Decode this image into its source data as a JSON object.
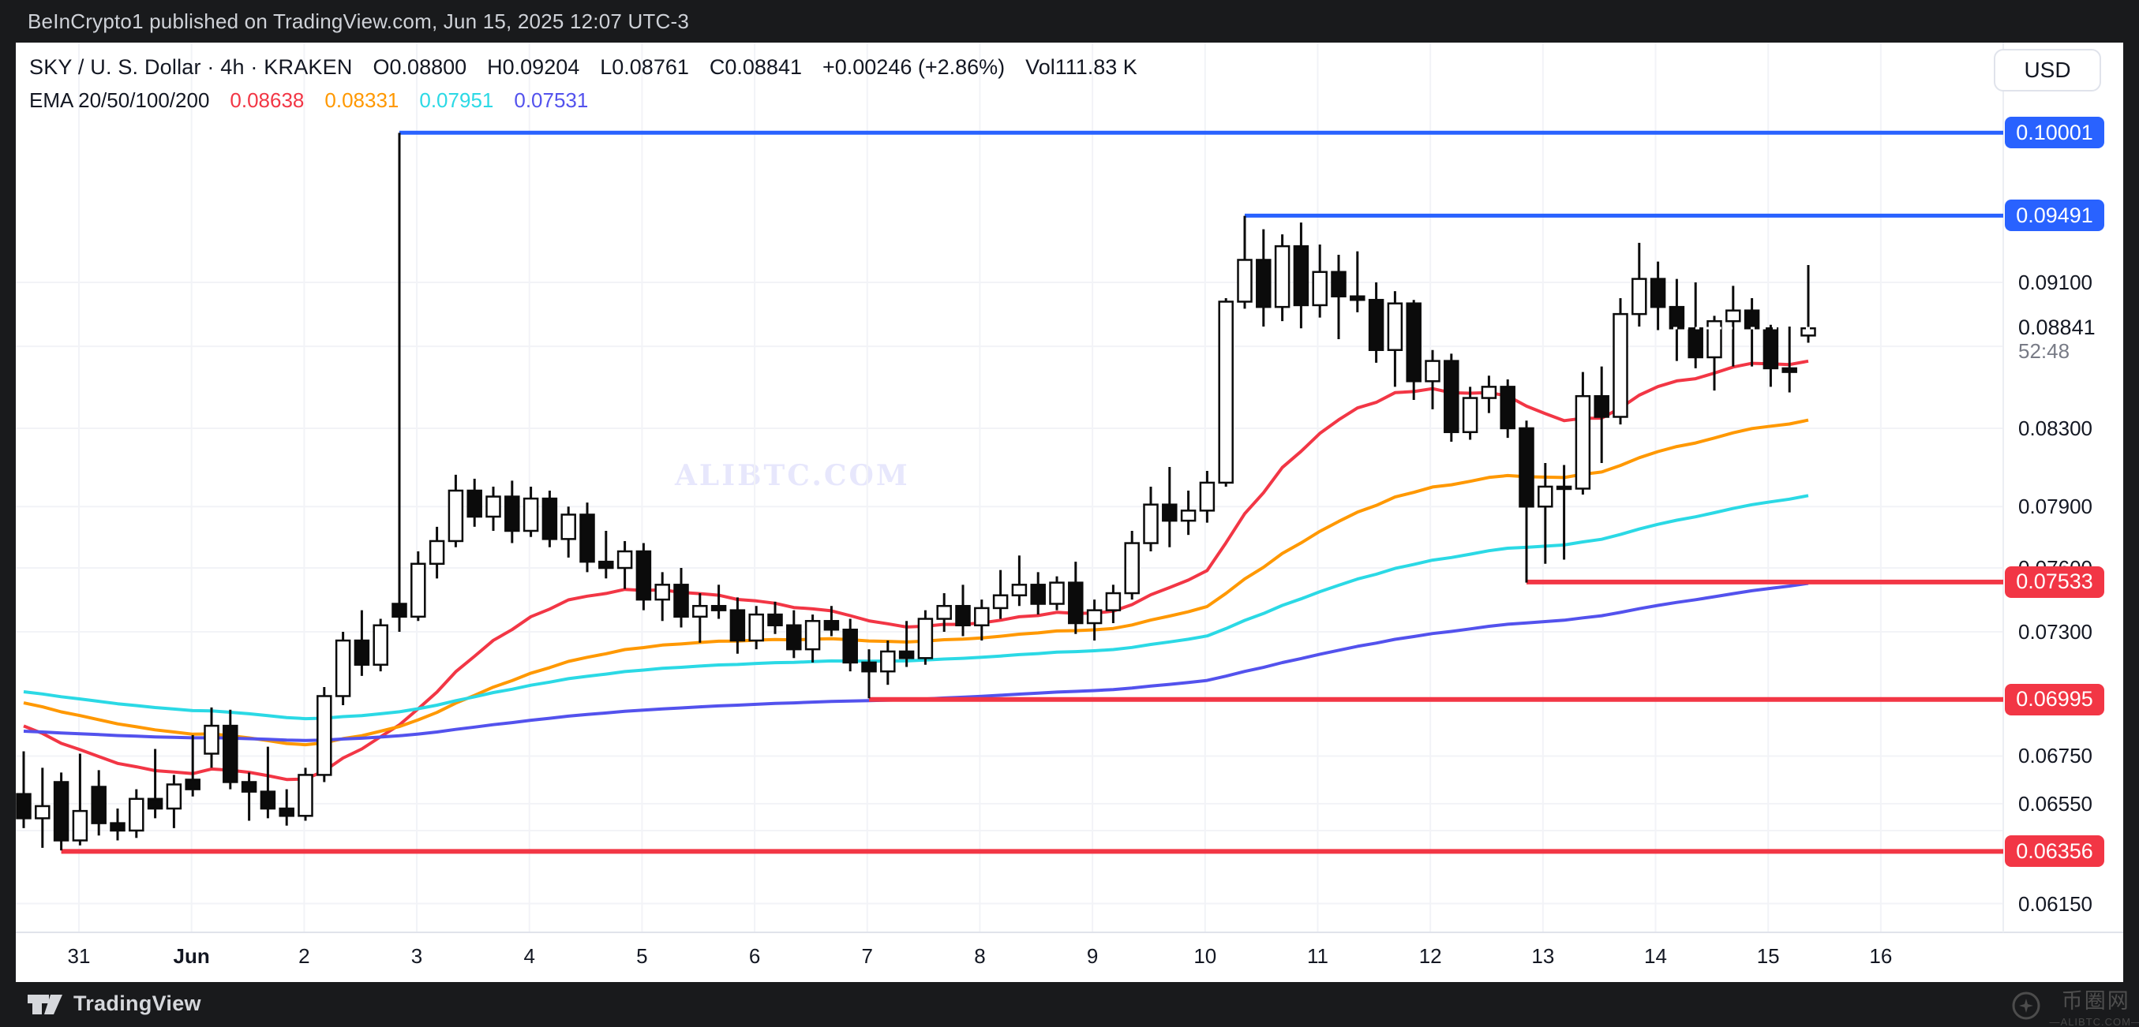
{
  "titlebar": {
    "attribution": "BeInCrypto1 published on TradingView.com, Jun 15, 2025 12:07 UTC-3"
  },
  "legend": {
    "symbol": "SKY / U. S. Dollar · 4h · KRAKEN",
    "o": "O0.08800",
    "h": "H0.09204",
    "l": "L0.08761",
    "c": "C0.08841",
    "change": "+0.00246 (+2.86%)",
    "volume": "Vol111.83 K"
  },
  "currency_button": {
    "label": "USD"
  },
  "watermark_center": "ALIBTC.COM",
  "bottombar": {
    "brand": "TradingView",
    "cn_name": "币圈网",
    "cn_site": "—ALIBTC.COM—"
  },
  "chart_data": {
    "type": "candlestick",
    "title": "SKY / U. S. Dollar · 4h · KRAKEN",
    "scale": "log",
    "grid": true,
    "current_price": {
      "value": 0.08841,
      "label": "0.08841",
      "countdown": "52:48"
    },
    "price_ticks": [
      {
        "label": "0.09100",
        "price": 0.091
      },
      {
        "label": "0.08300",
        "price": 0.083
      },
      {
        "label": "0.07900",
        "price": 0.079
      },
      {
        "label": "0.07600",
        "price": 0.076
      },
      {
        "label": "0.07300",
        "price": 0.073
      },
      {
        "label": "0.06750",
        "price": 0.0675
      },
      {
        "label": "0.06550",
        "price": 0.0655
      },
      {
        "label": "0.06150",
        "price": 0.0615
      }
    ],
    "minor_grid_prices": [
      0.0874,
      0.0644
    ],
    "time_ticks": [
      {
        "label": "31"
      },
      {
        "label": "Jun",
        "bold": true
      },
      {
        "label": "2"
      },
      {
        "label": "3"
      },
      {
        "label": "4"
      },
      {
        "label": "5"
      },
      {
        "label": "6"
      },
      {
        "label": "7"
      },
      {
        "label": "8"
      },
      {
        "label": "9"
      },
      {
        "label": "10"
      },
      {
        "label": "11"
      },
      {
        "label": "12"
      },
      {
        "label": "13"
      },
      {
        "label": "14"
      },
      {
        "label": "15"
      },
      {
        "label": "16"
      }
    ],
    "level_lines": [
      {
        "label": "0.10001",
        "price": 0.10001,
        "color": "#2962FF",
        "start_index": 20
      },
      {
        "label": "0.09491",
        "price": 0.09491,
        "color": "#2962FF",
        "start_index": 65
      },
      {
        "label": "0.07533",
        "price": 0.07533,
        "color": "#F23645",
        "start_index": 80
      },
      {
        "label": "0.06995",
        "price": 0.06995,
        "color": "#F23645",
        "start_index": 45
      },
      {
        "label": "0.06356",
        "price": 0.06356,
        "color": "#F23645",
        "start_index": 2
      }
    ],
    "emas": {
      "label": "EMA 20/50/100/200",
      "periods": [
        20,
        50,
        100,
        200
      ],
      "seeds": [
        0.0692,
        0.07,
        0.0704,
        0.0686
      ],
      "colors": [
        "#F23645",
        "#FF9800",
        "#2BD9E5",
        "#5352ED"
      ],
      "values": [
        "0.08638",
        "0.08331",
        "0.07951",
        "0.07531"
      ]
    },
    "candles": [
      [
        0.0659,
        0.0677,
        0.0645,
        0.0649
      ],
      [
        0.0649,
        0.067,
        0.0637,
        0.0654
      ],
      [
        0.0664,
        0.0668,
        0.0636,
        0.064
      ],
      [
        0.064,
        0.0676,
        0.0638,
        0.0652
      ],
      [
        0.0662,
        0.0669,
        0.0642,
        0.0647
      ],
      [
        0.0647,
        0.0653,
        0.064,
        0.0644
      ],
      [
        0.0644,
        0.0661,
        0.0641,
        0.0657
      ],
      [
        0.0657,
        0.0678,
        0.0649,
        0.0653
      ],
      [
        0.0653,
        0.0667,
        0.0645,
        0.0663
      ],
      [
        0.0665,
        0.0684,
        0.0658,
        0.0661
      ],
      [
        0.0676,
        0.0696,
        0.067,
        0.0688
      ],
      [
        0.0688,
        0.0695,
        0.0661,
        0.0664
      ],
      [
        0.0664,
        0.0668,
        0.0648,
        0.066
      ],
      [
        0.066,
        0.0679,
        0.0649,
        0.0653
      ],
      [
        0.0653,
        0.0661,
        0.0646,
        0.065
      ],
      [
        0.065,
        0.067,
        0.0648,
        0.0667
      ],
      [
        0.0667,
        0.0705,
        0.0664,
        0.0701
      ],
      [
        0.0701,
        0.073,
        0.0697,
        0.0726
      ],
      [
        0.0726,
        0.074,
        0.071,
        0.0715
      ],
      [
        0.0715,
        0.0736,
        0.0712,
        0.0733
      ],
      [
        0.0743,
        0.1,
        0.073,
        0.0737
      ],
      [
        0.0737,
        0.0768,
        0.0735,
        0.0762
      ],
      [
        0.0762,
        0.078,
        0.0755,
        0.0773
      ],
      [
        0.0773,
        0.0806,
        0.077,
        0.0798
      ],
      [
        0.0798,
        0.0804,
        0.078,
        0.0785
      ],
      [
        0.0785,
        0.08,
        0.0778,
        0.0795
      ],
      [
        0.0795,
        0.0803,
        0.0772,
        0.0778
      ],
      [
        0.0778,
        0.08,
        0.0775,
        0.0794
      ],
      [
        0.0794,
        0.0798,
        0.077,
        0.0774
      ],
      [
        0.0774,
        0.079,
        0.0765,
        0.0786
      ],
      [
        0.0786,
        0.0792,
        0.0758,
        0.0763
      ],
      [
        0.0763,
        0.0778,
        0.0755,
        0.076
      ],
      [
        0.076,
        0.0773,
        0.075,
        0.0768
      ],
      [
        0.0768,
        0.0772,
        0.074,
        0.0745
      ],
      [
        0.0745,
        0.0758,
        0.0735,
        0.0752
      ],
      [
        0.0752,
        0.076,
        0.0732,
        0.0737
      ],
      [
        0.0737,
        0.0748,
        0.0725,
        0.0742
      ],
      [
        0.0742,
        0.0752,
        0.0736,
        0.074
      ],
      [
        0.074,
        0.0746,
        0.072,
        0.0726
      ],
      [
        0.0726,
        0.0742,
        0.0722,
        0.0738
      ],
      [
        0.0738,
        0.0744,
        0.0729,
        0.0733
      ],
      [
        0.0733,
        0.074,
        0.0718,
        0.0722
      ],
      [
        0.0722,
        0.0738,
        0.0716,
        0.0735
      ],
      [
        0.0735,
        0.0742,
        0.0728,
        0.0731
      ],
      [
        0.0731,
        0.0736,
        0.0712,
        0.0716
      ],
      [
        0.0716,
        0.0722,
        0.07,
        0.0712
      ],
      [
        0.0712,
        0.0726,
        0.0706,
        0.0721
      ],
      [
        0.0721,
        0.0735,
        0.0714,
        0.0718
      ],
      [
        0.0718,
        0.074,
        0.0715,
        0.0736
      ],
      [
        0.0736,
        0.0748,
        0.073,
        0.0742
      ],
      [
        0.0742,
        0.0752,
        0.0728,
        0.0733
      ],
      [
        0.0733,
        0.0745,
        0.0726,
        0.0741
      ],
      [
        0.0741,
        0.0759,
        0.0736,
        0.0747
      ],
      [
        0.0747,
        0.0766,
        0.0742,
        0.0752
      ],
      [
        0.0752,
        0.0758,
        0.0738,
        0.0743
      ],
      [
        0.0743,
        0.0756,
        0.074,
        0.0753
      ],
      [
        0.0753,
        0.0763,
        0.0729,
        0.0734
      ],
      [
        0.0734,
        0.0745,
        0.0726,
        0.074
      ],
      [
        0.074,
        0.0752,
        0.0734,
        0.0748
      ],
      [
        0.0748,
        0.0778,
        0.0745,
        0.0772
      ],
      [
        0.0772,
        0.08,
        0.0768,
        0.0791
      ],
      [
        0.0791,
        0.081,
        0.077,
        0.0783
      ],
      [
        0.0783,
        0.0798,
        0.0776,
        0.0788
      ],
      [
        0.0788,
        0.0808,
        0.0782,
        0.0802
      ],
      [
        0.0802,
        0.0901,
        0.08,
        0.0899
      ],
      [
        0.0899,
        0.0949,
        0.0895,
        0.0923
      ],
      [
        0.0923,
        0.0941,
        0.0885,
        0.0896
      ],
      [
        0.0896,
        0.0938,
        0.0888,
        0.0931
      ],
      [
        0.0931,
        0.0945,
        0.0884,
        0.0897
      ],
      [
        0.0897,
        0.0932,
        0.089,
        0.0916
      ],
      [
        0.0916,
        0.0926,
        0.0878,
        0.0902
      ],
      [
        0.0902,
        0.0928,
        0.0893,
        0.09
      ],
      [
        0.09,
        0.091,
        0.0865,
        0.0872
      ],
      [
        0.0872,
        0.0905,
        0.0852,
        0.0898
      ],
      [
        0.0898,
        0.09,
        0.0845,
        0.0855
      ],
      [
        0.0855,
        0.0872,
        0.084,
        0.0866
      ],
      [
        0.0866,
        0.087,
        0.0823,
        0.0828
      ],
      [
        0.0828,
        0.0852,
        0.0824,
        0.0846
      ],
      [
        0.0846,
        0.0858,
        0.0838,
        0.0852
      ],
      [
        0.0852,
        0.0856,
        0.0825,
        0.083
      ],
      [
        0.083,
        0.0834,
        0.0753,
        0.079
      ],
      [
        0.079,
        0.0812,
        0.0762,
        0.08
      ],
      [
        0.08,
        0.0811,
        0.0764,
        0.0799
      ],
      [
        0.0799,
        0.086,
        0.0796,
        0.0847
      ],
      [
        0.0847,
        0.0863,
        0.0812,
        0.0836
      ],
      [
        0.0836,
        0.0901,
        0.0832,
        0.0892
      ],
      [
        0.0892,
        0.0933,
        0.0885,
        0.0912
      ],
      [
        0.0912,
        0.0922,
        0.0883,
        0.0896
      ],
      [
        0.0896,
        0.0912,
        0.0866,
        0.0884
      ],
      [
        0.0884,
        0.091,
        0.0862,
        0.0868
      ],
      [
        0.0868,
        0.0891,
        0.085,
        0.0888
      ],
      [
        0.0888,
        0.0908,
        0.0863,
        0.0894
      ],
      [
        0.0894,
        0.0901,
        0.0863,
        0.0884
      ],
      [
        0.0884,
        0.0886,
        0.0852,
        0.0862
      ],
      [
        0.0862,
        0.0885,
        0.0849,
        0.086
      ],
      [
        0.088,
        0.092,
        0.0876,
        0.0884
      ]
    ]
  }
}
